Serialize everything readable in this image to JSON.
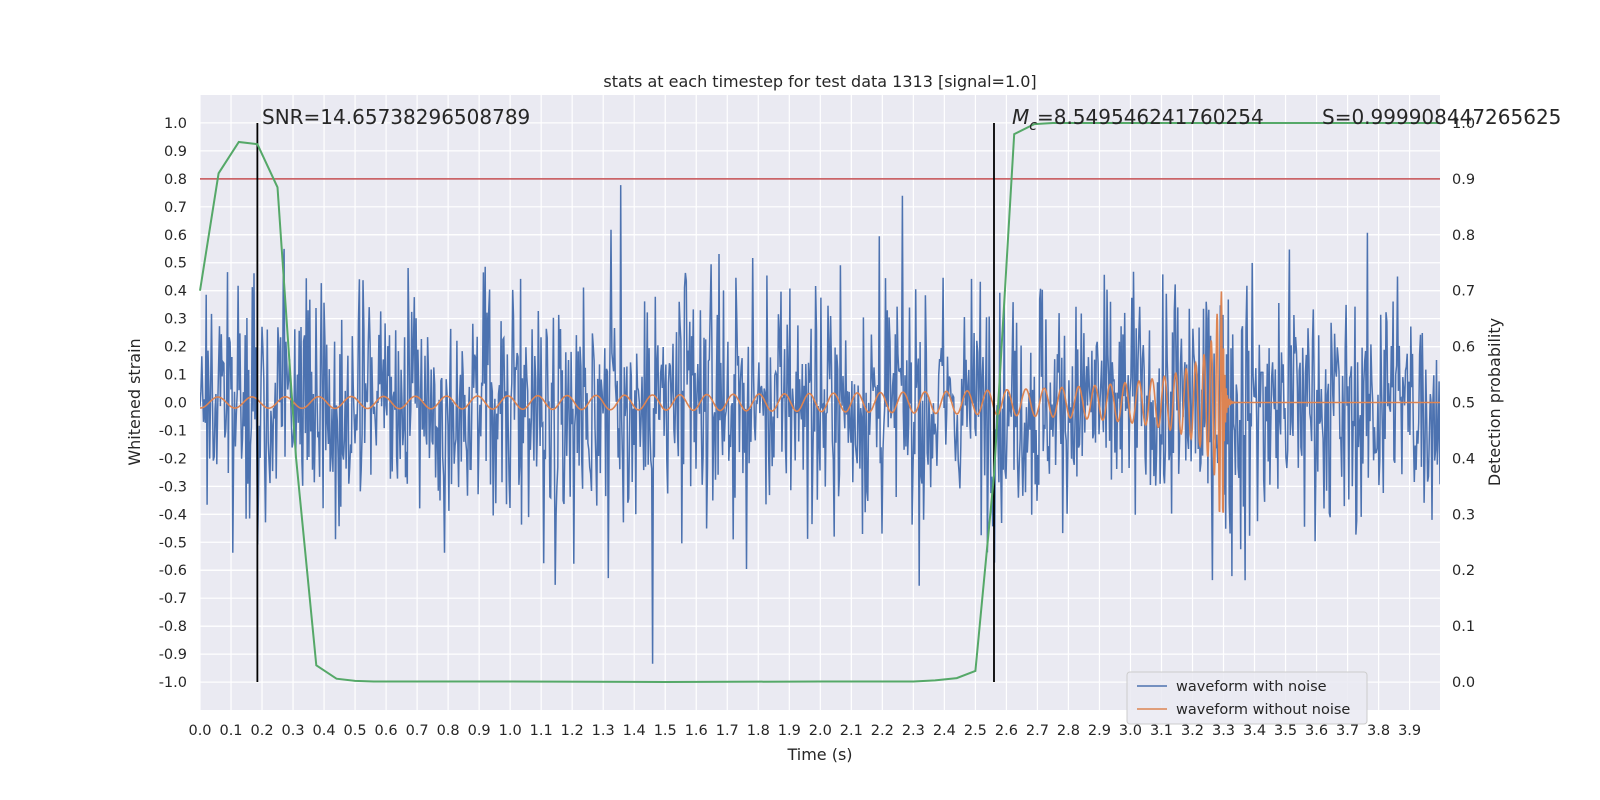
{
  "chart_data": {
    "type": "line",
    "title": "stats at each timestep for test data 1313 [signal=1.0]",
    "xlabel": "Time (s)",
    "ylabel": "Whitened strain",
    "y2label": "Detection probability",
    "xlim": [
      0.0,
      3.998
    ],
    "ylim": [
      -1.1,
      1.1
    ],
    "y2lim": [
      -0.05,
      1.05
    ],
    "grid": true,
    "legend_position": "bottom-right",
    "x_ticks": [
      "0.0",
      "0.1",
      "0.2",
      "0.3",
      "0.4",
      "0.5",
      "0.6",
      "0.7",
      "0.8",
      "0.9",
      "1.0",
      "1.1",
      "1.2",
      "1.3",
      "1.4",
      "1.5",
      "1.6",
      "1.7",
      "1.8",
      "1.9",
      "2.0",
      "2.1",
      "2.2",
      "2.3",
      "2.4",
      "2.5",
      "2.6",
      "2.7",
      "2.8",
      "2.9",
      "3.0",
      "3.1",
      "3.2",
      "3.3",
      "3.4",
      "3.5",
      "3.6",
      "3.7",
      "3.8",
      "3.9"
    ],
    "y_ticks": [
      "1.0",
      "0.9",
      "0.8",
      "0.7",
      "0.6",
      "0.5",
      "0.4",
      "0.3",
      "0.2",
      "0.1",
      "0.0",
      "-0.1",
      "-0.2",
      "-0.3",
      "-0.4",
      "-0.5",
      "-0.6",
      "-0.7",
      "-0.8",
      "-0.9",
      "-1.0"
    ],
    "y2_ticks": [
      "1.0",
      "0.9",
      "0.8",
      "0.7",
      "0.6",
      "0.5",
      "0.4",
      "0.3",
      "0.2",
      "0.1",
      "0.0"
    ],
    "annotations": {
      "snr": "SNR=14.65738296508789",
      "mc_symbol": "M",
      "mc_sub": "c",
      "mc_value": "=8.549546241760254",
      "s": "S=0.999908447265625"
    },
    "vlines_x": [
      0.185,
      2.56
    ],
    "threshold_y2": 0.9,
    "series": [
      {
        "name": "waveform with noise",
        "color": "#4c72b0",
        "kind": "noise",
        "noise_amplitude": 0.5,
        "axis": "left"
      },
      {
        "name": "waveform without noise",
        "color": "#dd8452",
        "kind": "chirp",
        "merger_time": 3.3,
        "peak": 0.4,
        "axis": "left"
      },
      {
        "name": "",
        "color": "#55a868",
        "axis": "right",
        "x": [
          0.0,
          0.06,
          0.125,
          0.185,
          0.25,
          0.31,
          0.375,
          0.44,
          0.5,
          0.56,
          1.0,
          1.5,
          2.0,
          2.3,
          2.37,
          2.44,
          2.5,
          2.56,
          2.625,
          2.69,
          2.75,
          3.0,
          3.5,
          3.998
        ],
        "y": [
          0.7,
          0.91,
          0.966,
          0.962,
          0.885,
          0.4,
          0.03,
          0.006,
          0.002,
          0.001,
          0.001,
          0.0,
          0.001,
          0.001,
          0.003,
          0.007,
          0.02,
          0.37,
          0.98,
          0.998,
          1.0,
          1.0,
          1.0,
          1.0
        ]
      }
    ]
  }
}
